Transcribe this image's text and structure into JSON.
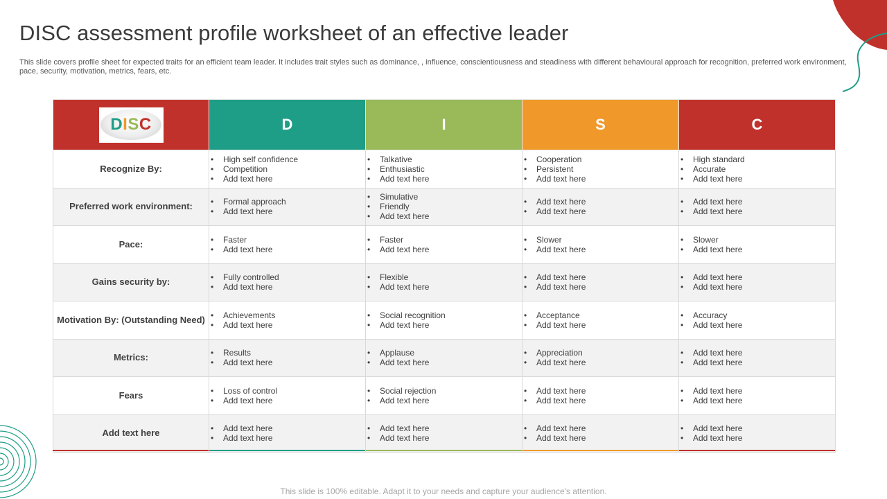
{
  "page": {
    "title": "DISC assessment profile worksheet of an effective leader",
    "subtitle": "This slide covers profile sheet for expected traits for an efficient team leader. It includes trait styles such as dominance, , influence, conscientiousness and steadiness with different behavioural approach for recognition, preferred work environment, pace, security, motivation, metrics, fears, etc.",
    "footer": "This slide is 100% editable. Adapt it to your needs and capture your audience's attention."
  },
  "logo": {
    "d": "D",
    "i": "I",
    "s": "S",
    "c": "C"
  },
  "columns": [
    {
      "label": "D",
      "color": "#1e9e86"
    },
    {
      "label": "I",
      "color": "#9aba5a"
    },
    {
      "label": "S",
      "color": "#f0992a"
    },
    {
      "label": "C",
      "color": "#c0312b"
    }
  ],
  "accent_colors": {
    "red": "#c0312b",
    "teal": "#1e9e86",
    "green": "#9aba5a",
    "orange": "#f0992a"
  },
  "rows": [
    {
      "label": "Recognize By:",
      "cells": [
        [
          "High self confidence",
          "Competition",
          "Add text here"
        ],
        [
          "Talkative",
          "Enthusiastic",
          "Add text here"
        ],
        [
          "Cooperation",
          "Persistent",
          "Add text here"
        ],
        [
          "High standard",
          "Accurate",
          "Add text here"
        ]
      ]
    },
    {
      "label": "Preferred work environment:",
      "cells": [
        [
          "Formal approach",
          "Add text here"
        ],
        [
          "Simulative",
          "Friendly",
          "Add text here"
        ],
        [
          "Add text here",
          "Add text here"
        ],
        [
          "Add text here",
          "Add text here"
        ]
      ]
    },
    {
      "label": "Pace:",
      "cells": [
        [
          "Faster",
          "Add text here"
        ],
        [
          "Faster",
          "Add text here"
        ],
        [
          "Slower",
          "Add text here"
        ],
        [
          "Slower",
          "Add text here"
        ]
      ]
    },
    {
      "label": "Gains security  by:",
      "cells": [
        [
          "Fully controlled",
          "Add text here"
        ],
        [
          "Flexible",
          "Add text here"
        ],
        [
          "Add text here",
          "Add text here"
        ],
        [
          "Add text here",
          "Add text here"
        ]
      ]
    },
    {
      "label": "Motivation By: (Outstanding  Need)",
      "cells": [
        [
          "Achievements",
          "Add text here"
        ],
        [
          "Social recognition",
          "Add text here"
        ],
        [
          "Acceptance",
          "Add text here"
        ],
        [
          "Accuracy",
          "Add text here"
        ]
      ]
    },
    {
      "label": "Metrics:",
      "cells": [
        [
          "Results",
          "Add text here"
        ],
        [
          "Applause",
          "Add text here"
        ],
        [
          "Appreciation",
          "Add text here"
        ],
        [
          "Add text here",
          "Add text here"
        ]
      ]
    },
    {
      "label": "Fears",
      "cells": [
        [
          "Loss of control",
          "Add text here"
        ],
        [
          "Social rejection",
          "Add text here"
        ],
        [
          "Add text here",
          "Add text here"
        ],
        [
          "Add text here",
          "Add text here"
        ]
      ]
    },
    {
      "label": "Add  text here",
      "cells": [
        [
          "Add text here",
          "Add text here"
        ],
        [
          "Add text here",
          "Add text here"
        ],
        [
          "Add text here",
          "Add text here"
        ],
        [
          "Add text here",
          "Add text here"
        ]
      ]
    }
  ]
}
